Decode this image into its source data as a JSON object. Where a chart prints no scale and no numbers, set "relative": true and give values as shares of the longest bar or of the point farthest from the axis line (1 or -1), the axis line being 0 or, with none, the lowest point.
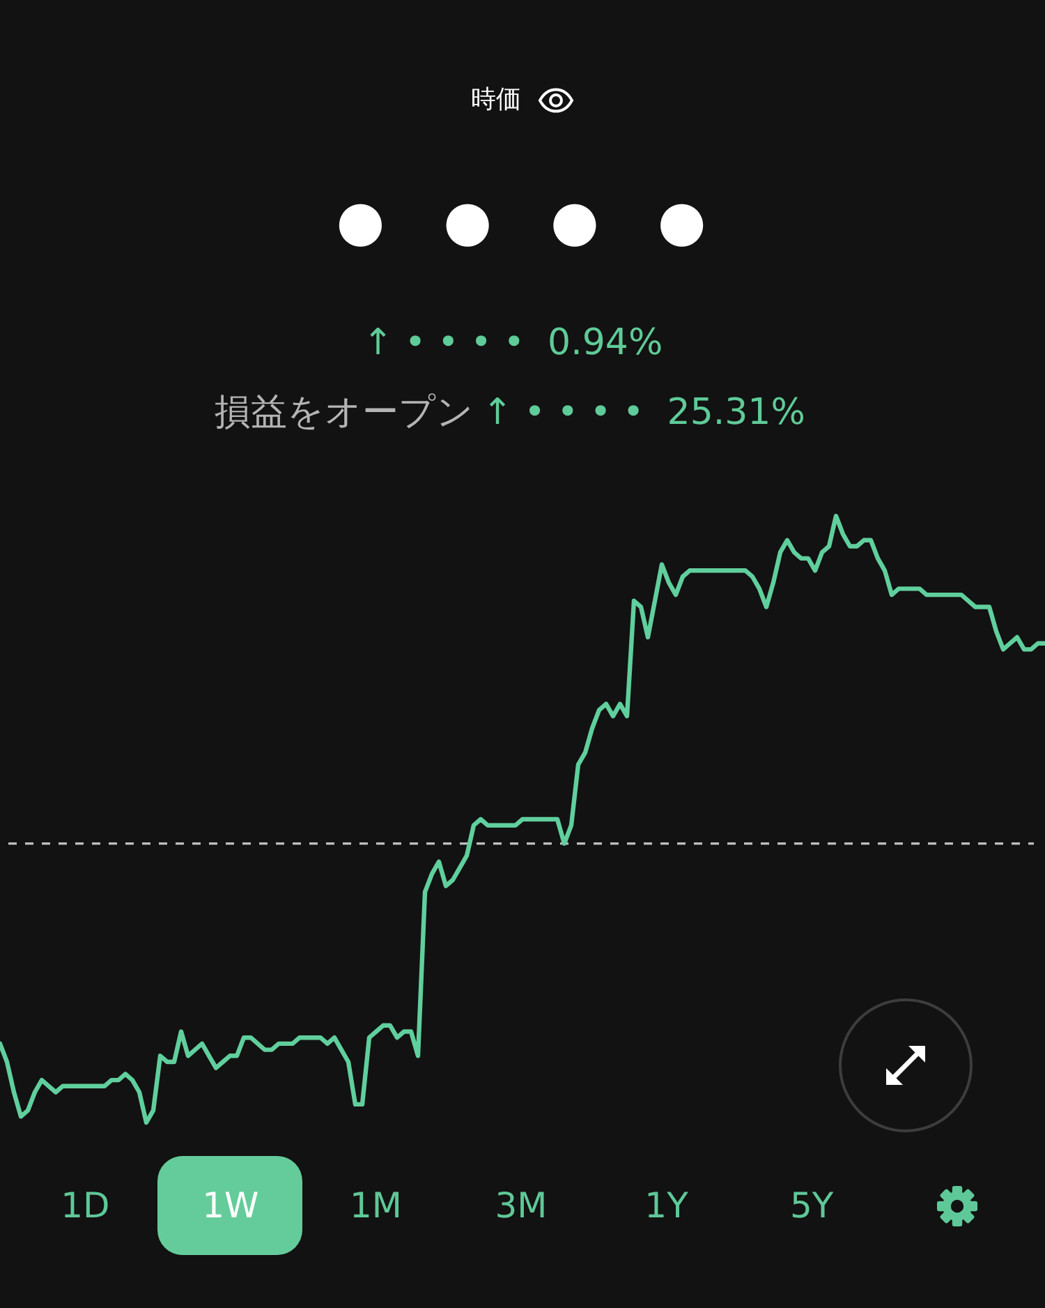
{
  "chart_data": {
    "type": "line",
    "title": "時価",
    "subtitle": "●●●●",
    "annotations": [
      "↑ • • • •  0.94%",
      "損益をオープン",
      "↑ • • • •  25.31%",
      "1D",
      "1W",
      "1M",
      "3M",
      "1Y",
      "5Y"
    ],
    "relative": true,
    "marker": "none",
    "line_style": "solid",
    "categories": [
      null,
      null,
      null,
      null,
      null,
      null,
      null,
      null,
      null,
      null,
      null,
      null,
      null,
      null,
      null,
      null,
      null,
      null,
      null,
      null,
      null,
      null,
      null,
      null,
      null,
      null,
      null,
      null,
      null,
      null,
      null,
      null,
      null,
      null,
      null,
      null,
      null,
      null,
      null,
      null,
      null,
      null,
      null,
      null,
      null,
      null,
      null,
      null,
      null,
      null,
      null,
      null,
      null,
      null,
      null,
      null,
      null,
      null,
      null,
      null,
      null,
      null,
      null,
      null,
      null,
      null,
      null,
      null,
      null,
      null,
      null,
      null,
      null,
      null,
      null,
      null,
      null,
      null,
      null,
      null,
      null,
      null,
      null,
      null,
      null,
      null,
      null,
      null,
      null,
      null,
      null,
      null,
      null,
      null,
      null,
      null,
      null,
      null,
      null,
      null,
      null,
      null,
      null,
      null,
      null,
      null,
      null,
      null,
      null,
      null,
      null,
      null,
      null,
      null,
      null,
      null,
      null,
      null,
      null,
      null,
      null,
      null,
      null,
      null,
      null,
      null,
      null,
      null,
      null,
      null,
      null,
      null,
      null,
      null,
      null,
      null,
      null,
      null,
      null,
      null,
      null,
      null,
      null,
      null,
      null,
      null,
      null,
      null,
      null,
      null,
      null
    ],
    "series": [
      {
        "color": "#60cf9d",
        "values": [
          0.13,
          0.1,
          0.05,
          0.01,
          0.02,
          0.05,
          0.07,
          0.06,
          0.05,
          0.06,
          0.06,
          0.06,
          0.06,
          0.06,
          0.06,
          0.06,
          0.07,
          0.07,
          0.08,
          0.07,
          0.05,
          0,
          0.02,
          0.11,
          0.1,
          0.1,
          0.15,
          0.11,
          0.12,
          0.13,
          0.11,
          0.09,
          0.1,
          0.11,
          0.11,
          0.14,
          0.14,
          0.13,
          0.12,
          0.12,
          0.13,
          0.13,
          0.13,
          0.14,
          0.14,
          0.14,
          0.14,
          0.13,
          0.14,
          0.12,
          0.1,
          0.03,
          0.03,
          0.14,
          0.15,
          0.16,
          0.16,
          0.14,
          0.15,
          0.15,
          0.11,
          0.38,
          0.41,
          0.43,
          0.39,
          0.4,
          0.42,
          0.44,
          0.49,
          0.5,
          0.49,
          0.49,
          0.49,
          0.49,
          0.49,
          0.5,
          0.5,
          0.5,
          0.5,
          0.5,
          0.5,
          0.46,
          0.49,
          0.59,
          0.61,
          0.65,
          0.68,
          0.69,
          0.67,
          0.69,
          0.67,
          0.86,
          0.85,
          0.8,
          0.86,
          0.92,
          0.89,
          0.87,
          0.9,
          0.91,
          0.91,
          0.91,
          0.91,
          0.91,
          0.91,
          0.91,
          0.91,
          0.91,
          0.9,
          0.88,
          0.85,
          0.89,
          0.94,
          0.96,
          0.94,
          0.93,
          0.93,
          0.91,
          0.94,
          0.95,
          1,
          0.97,
          0.95,
          0.95,
          0.96,
          0.96,
          0.93,
          0.91,
          0.87,
          0.88,
          0.88,
          0.88,
          0.88,
          0.87,
          0.87,
          0.87,
          0.87,
          0.87,
          0.87,
          0.86,
          0.85,
          0.85,
          0.85,
          0.81,
          0.78,
          0.79,
          0.8,
          0.78,
          0.78,
          0.79,
          0.79
        ]
      }
    ],
    "ref_lines": [
      {
        "axis": "y",
        "value": 0.46,
        "color": "#c4c4c4",
        "line_style": "dashed"
      }
    ]
  }
}
